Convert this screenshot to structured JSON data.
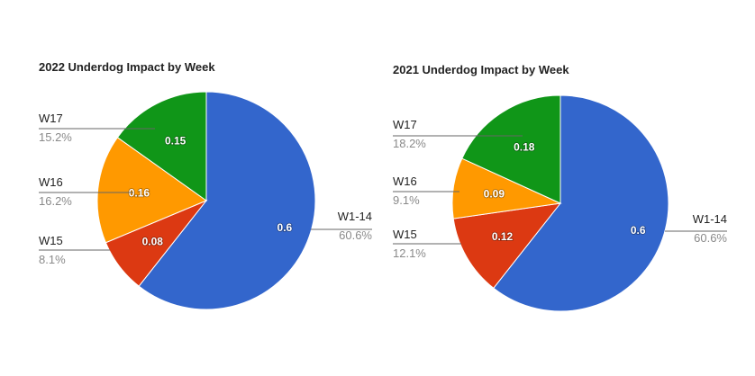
{
  "chart_data": [
    {
      "type": "pie",
      "title": "2022 Underdog Impact by Week",
      "slices": [
        {
          "name": "W1-14",
          "value": 0.6,
          "value_label": "0.6",
          "percent_label": "60.6%",
          "color": "#3366cc"
        },
        {
          "name": "W15",
          "value": 0.08,
          "value_label": "0.08",
          "percent_label": "8.1%",
          "color": "#dc3912"
        },
        {
          "name": "W16",
          "value": 0.16,
          "value_label": "0.16",
          "percent_label": "16.2%",
          "color": "#ff9900"
        },
        {
          "name": "W17",
          "value": 0.15,
          "value_label": "0.15",
          "percent_label": "15.2%",
          "color": "#109618"
        }
      ]
    },
    {
      "type": "pie",
      "title": "2021 Underdog Impact by Week",
      "slices": [
        {
          "name": "W1-14",
          "value": 0.6,
          "value_label": "0.6",
          "percent_label": "60.6%",
          "color": "#3366cc"
        },
        {
          "name": "W15",
          "value": 0.12,
          "value_label": "0.12",
          "percent_label": "12.1%",
          "color": "#dc3912"
        },
        {
          "name": "W16",
          "value": 0.09,
          "value_label": "0.09",
          "percent_label": "9.1%",
          "color": "#ff9900"
        },
        {
          "name": "W17",
          "value": 0.18,
          "value_label": "0.18",
          "percent_label": "18.2%",
          "color": "#109618"
        }
      ]
    }
  ]
}
